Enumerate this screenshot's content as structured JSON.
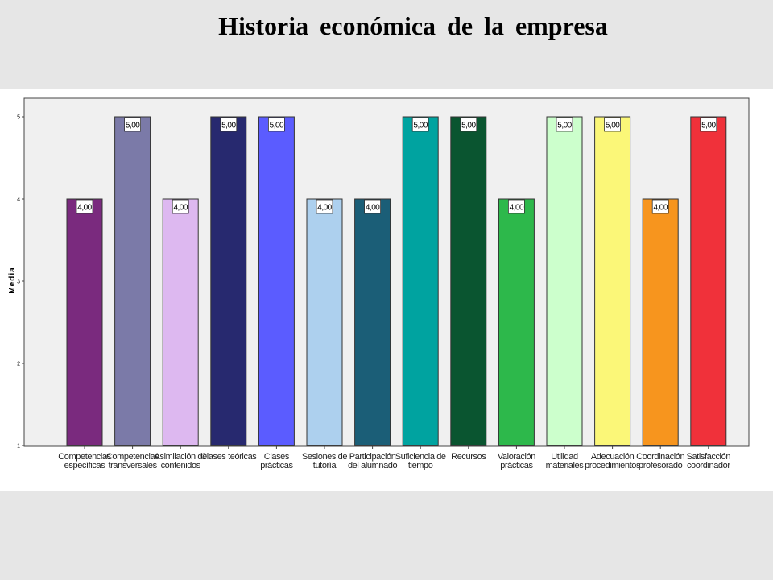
{
  "slide": {
    "title": "Historia económica de la empresa"
  },
  "chart_data": {
    "type": "bar",
    "title": "",
    "xlabel": "",
    "ylabel": "Media",
    "ylim": [
      1,
      5
    ],
    "yticks": [
      "1",
      "2",
      "3",
      "4",
      "5"
    ],
    "grid": false,
    "categories": [
      [
        "Competencias",
        "específicas"
      ],
      [
        "Competencias",
        "transversales"
      ],
      [
        "Asimilación de",
        "contenidos"
      ],
      [
        "Clases teóricas"
      ],
      [
        "Clases",
        "prácticas"
      ],
      [
        "Sesiones de",
        "tutoría"
      ],
      [
        "Participación",
        "del alumnado"
      ],
      [
        "Suficiencia de",
        "tiempo"
      ],
      [
        "Recursos"
      ],
      [
        "Valoración",
        "prácticas"
      ],
      [
        "Utilidad",
        "materiales"
      ],
      [
        "Adecuación",
        "procedimientos"
      ],
      [
        "Coordinación",
        "profesorado"
      ],
      [
        "Satisfacción",
        "coordinador"
      ]
    ],
    "values": [
      4,
      5,
      4,
      5,
      5,
      4,
      4,
      5,
      5,
      4,
      5,
      5,
      4,
      5
    ],
    "data_labels": [
      "4,00",
      "5,00",
      "4,00",
      "5,00",
      "5,00",
      "4,00",
      "4,00",
      "5,00",
      "5,00",
      "4,00",
      "5,00",
      "5,00",
      "4,00",
      "5,00"
    ],
    "colors": [
      "#7a2a7e",
      "#7b7aa8",
      "#ddb8f0",
      "#27296f",
      "#5b5cff",
      "#add0ee",
      "#1b5e77",
      "#00a3a0",
      "#0a5530",
      "#2db84b",
      "#ccffcc",
      "#fbf778",
      "#f7951e",
      "#f0313a"
    ]
  }
}
